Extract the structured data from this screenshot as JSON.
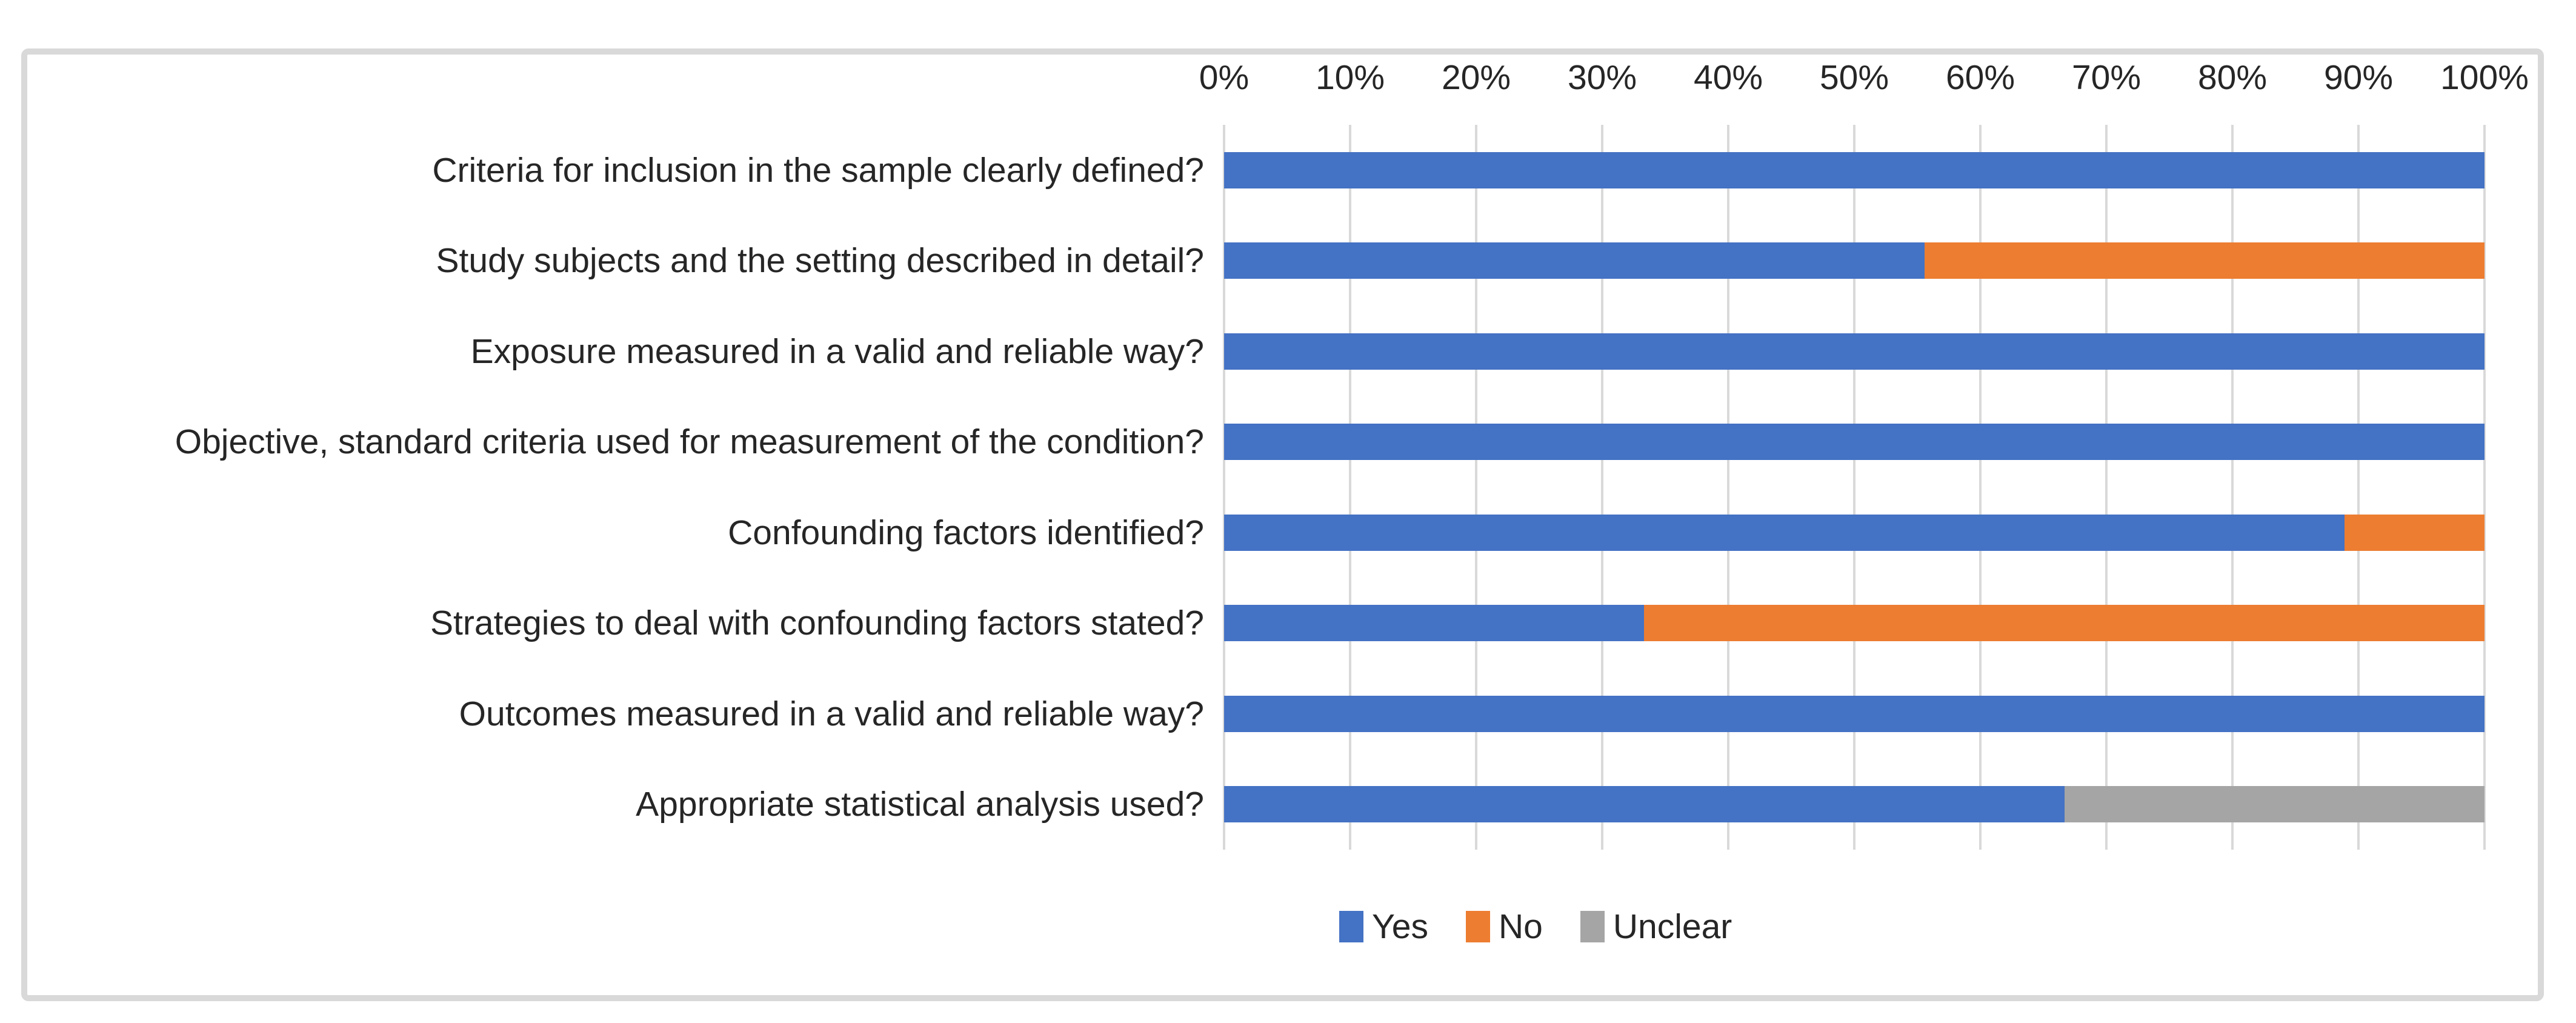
{
  "chart_data": {
    "type": "bar",
    "orientation": "horizontal-stacked",
    "title": "",
    "categories": [
      "Criteria for inclusion in the sample clearly defined?",
      "Study subjects and the setting described in detail?",
      "Exposure measured in a valid and reliable way?",
      "Objective, standard criteria used for measurement of the condition?",
      "Confounding factors identified?",
      "Strategies to deal with confounding factors stated?",
      "Outcomes measured in a valid and reliable way?",
      "Appropriate statistical analysis used?"
    ],
    "series": [
      {
        "name": "Yes",
        "color": "#4472C4",
        "values": [
          100,
          55.6,
          100,
          100,
          88.9,
          33.3,
          100,
          66.7
        ]
      },
      {
        "name": "No",
        "color": "#ED7D31",
        "values": [
          0,
          44.4,
          0,
          0,
          11.1,
          66.7,
          0,
          0
        ]
      },
      {
        "name": "Unclear",
        "color": "#A5A5A5",
        "values": [
          0,
          0,
          0,
          0,
          0,
          0,
          0,
          33.3
        ]
      }
    ],
    "x_axis": {
      "position": "top",
      "min": 0,
      "max": 100,
      "tick_labels": [
        "0%",
        "10%",
        "20%",
        "30%",
        "40%",
        "50%",
        "60%",
        "70%",
        "80%",
        "90%",
        "100%"
      ]
    },
    "legend": {
      "position": "bottom",
      "entries": [
        "Yes",
        "No",
        "Unclear"
      ]
    },
    "grid": true
  },
  "style_colors": {
    "gridline": "#D9D9D9",
    "frame_border": "#D9D9D9",
    "text": "#262626",
    "background": "#FFFFFF"
  }
}
